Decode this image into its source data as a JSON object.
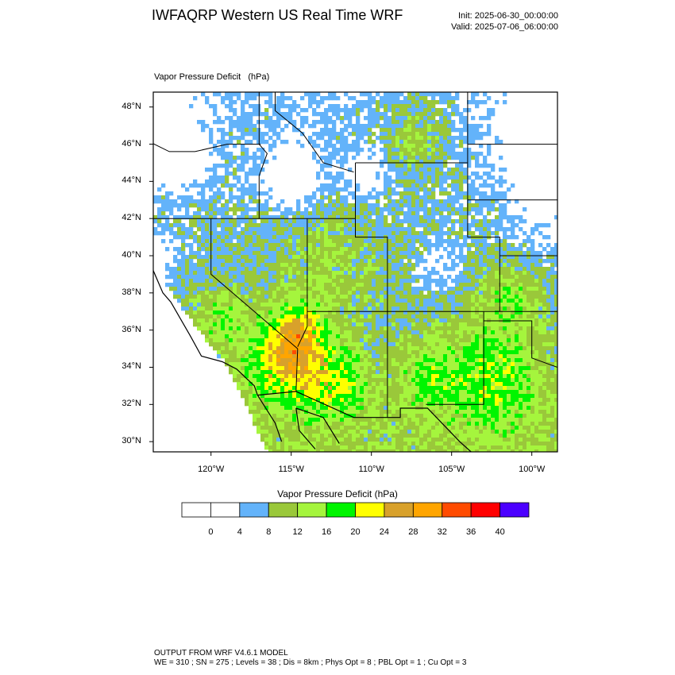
{
  "header": {
    "title": "IWFAQRP Western US Real Time WRF",
    "init": "Init: 2025-06-30_00:00:00",
    "valid": "Valid: 2025-07-06_06:00:00"
  },
  "field_label": "Vapor Pressure Deficit   (hPa)",
  "map": {
    "latitude_labels": [
      "48°N",
      "46°N",
      "44°N",
      "42°N",
      "40°N",
      "38°N",
      "36°N",
      "34°N",
      "32°N",
      "30°N"
    ],
    "longitude_labels": [
      "120°W",
      "115°W",
      "110°W",
      "105°W",
      "100°W"
    ],
    "extent": {
      "lon_min": -123.6,
      "lon_max": -98.4,
      "lat_min": 29.45,
      "lat_max": 48.8
    }
  },
  "colorbar": {
    "title": "Vapor Pressure Deficit  (hPa)",
    "tick_labels": [
      "0",
      "4",
      "8",
      "12",
      "16",
      "20",
      "24",
      "28",
      "32",
      "36",
      "40"
    ],
    "colors": [
      "#ffffff",
      "#ffffff",
      "#63b3fa",
      "#9ac83a",
      "#a5f53d",
      "#00f500",
      "#ffff00",
      "#d8a12b",
      "#ffa500",
      "#ff4b00",
      "#ff0000",
      "#4b00ff"
    ]
  },
  "footer": {
    "line1": "OUTPUT FROM WRF V4.6.1 MODEL",
    "line2": "WE = 310 ; SN = 275 ; Levels = 38 ; Dis = 8km ; Phys Opt = 8 ; PBL Opt = 1 ; Cu Opt = 3"
  }
}
